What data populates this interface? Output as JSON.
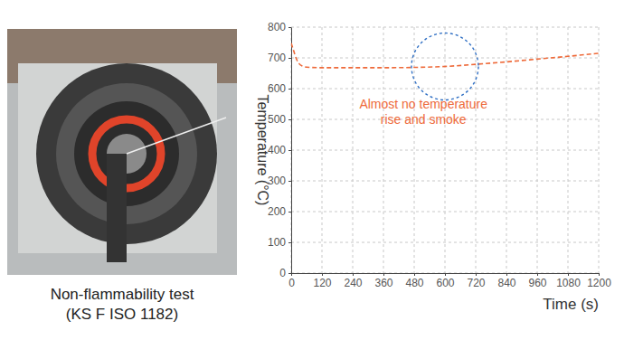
{
  "photo": {
    "caption": [
      "Non-flammability test",
      "(KS F ISO 1182)"
    ]
  },
  "chart_data": {
    "type": "line",
    "y_label": "Temperature (°C)",
    "x_label": "Time (s)",
    "annotation": [
      "Almost no temperature",
      "rise and smoke"
    ],
    "x": [
      0,
      10,
      20,
      30,
      45,
      60,
      120,
      240,
      360,
      480,
      600,
      720,
      840,
      960,
      1080,
      1200
    ],
    "values": [
      748,
      722,
      697,
      682,
      673,
      670,
      668,
      668,
      668,
      669,
      672,
      679,
      687,
      696,
      705,
      715
    ],
    "color": "#ee6a3a",
    "line_style": "dashed",
    "xlim": [
      0,
      1200
    ],
    "xticks": [
      0,
      120,
      240,
      360,
      480,
      600,
      720,
      840,
      960,
      1080,
      1200
    ],
    "ylim": [
      0,
      800
    ],
    "yticks": [
      0,
      100,
      200,
      300,
      400,
      500,
      600,
      700,
      800
    ],
    "grid": true
  }
}
